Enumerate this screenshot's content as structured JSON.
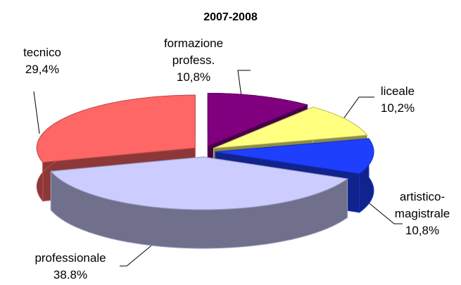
{
  "chart_data": {
    "type": "pie",
    "title": "2007-2008",
    "categories": [
      "formazione profess.",
      "liceale",
      "artistico-magistrale",
      "professionale",
      "tecnico"
    ],
    "values": [
      10.8,
      10.2,
      10.8,
      38.8,
      29.4
    ],
    "value_labels": [
      "10,8%",
      "10,2%",
      "10,8%",
      "38.8%",
      "29,4%"
    ],
    "colors": [
      "#800080",
      "#ffff80",
      "#1f3fff",
      "#ccccff",
      "#ff6666"
    ]
  }
}
